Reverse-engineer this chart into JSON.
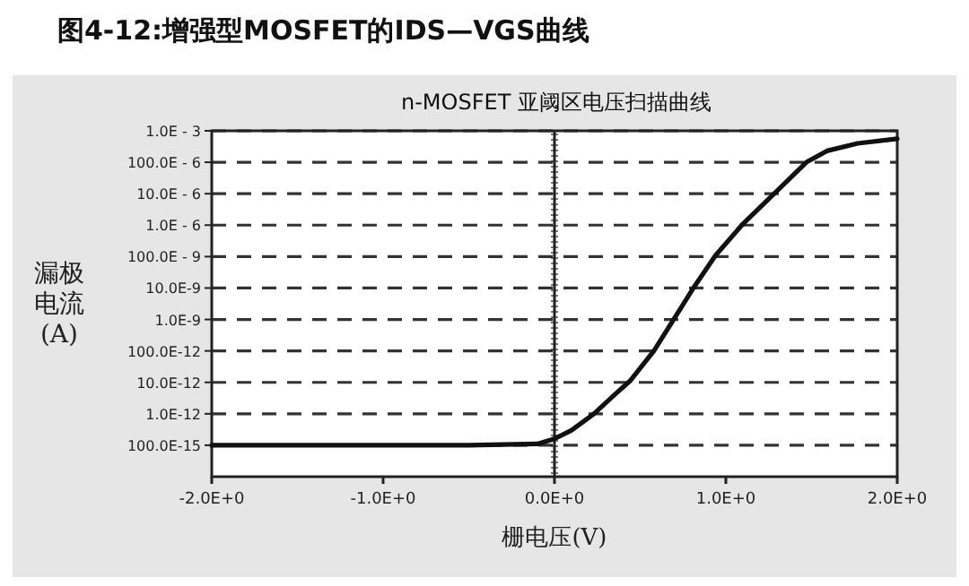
{
  "chart_data": {
    "type": "line",
    "title": "图4-12:增强型MOSFET的IDS—VGS曲线",
    "subtitle": "n-MOSFET 亚阈区电压扫描曲线",
    "xlabel": "栅电压(V)",
    "ylabel": "漏极电流(A)",
    "log": "y",
    "grid": "y",
    "xlim": [
      -2,
      2
    ],
    "ylim": [
      1e-14,
      0.001
    ],
    "xticks": [
      {
        "value": -2,
        "label": "-2.0E+0"
      },
      {
        "value": -1,
        "label": "-1.0E+0"
      },
      {
        "value": 0,
        "label": "0.0E+0"
      },
      {
        "value": 1,
        "label": "1.0E+0"
      },
      {
        "value": 2,
        "label": "2.0E+0"
      }
    ],
    "yticks": [
      {
        "value": 0.001,
        "label": "1.0E - 3"
      },
      {
        "value": 0.0001,
        "label": "100.0E - 6"
      },
      {
        "value": 1e-05,
        "label": "10.0E - 6"
      },
      {
        "value": 1e-06,
        "label": "1.0E - 6"
      },
      {
        "value": 1e-07,
        "label": "100.0E - 9"
      },
      {
        "value": 1e-08,
        "label": "10.0E-9"
      },
      {
        "value": 1e-09,
        "label": "1.0E-9"
      },
      {
        "value": 1e-10,
        "label": "100.0E-12"
      },
      {
        "value": 1e-11,
        "label": "10.0E-12"
      },
      {
        "value": 1e-12,
        "label": "1.0E-12"
      },
      {
        "value": 1e-13,
        "label": "100.0E-15"
      }
    ],
    "ref_lines": [
      {
        "axis": "x",
        "value": 0,
        "color": "#222222"
      }
    ],
    "series": [
      {
        "color": "#111111",
        "x": [
          -2,
          -1,
          -0.5,
          -0.1,
          0.0,
          0.1,
          0.23,
          0.35,
          0.44,
          0.58,
          0.7,
          0.82,
          0.94,
          1.1,
          1.29,
          1.47,
          1.59,
          1.77,
          2.0
        ],
        "values": [
          1e-13,
          1e-13,
          1e-13,
          1.1e-13,
          1.6e-13,
          3e-13,
          1e-12,
          4e-12,
          1.1e-11,
          1e-10,
          1.1e-09,
          1.2e-08,
          1.1e-07,
          1.1e-06,
          1.1e-05,
          0.0001,
          0.00023,
          0.0004,
          0.00056
        ]
      }
    ]
  }
}
